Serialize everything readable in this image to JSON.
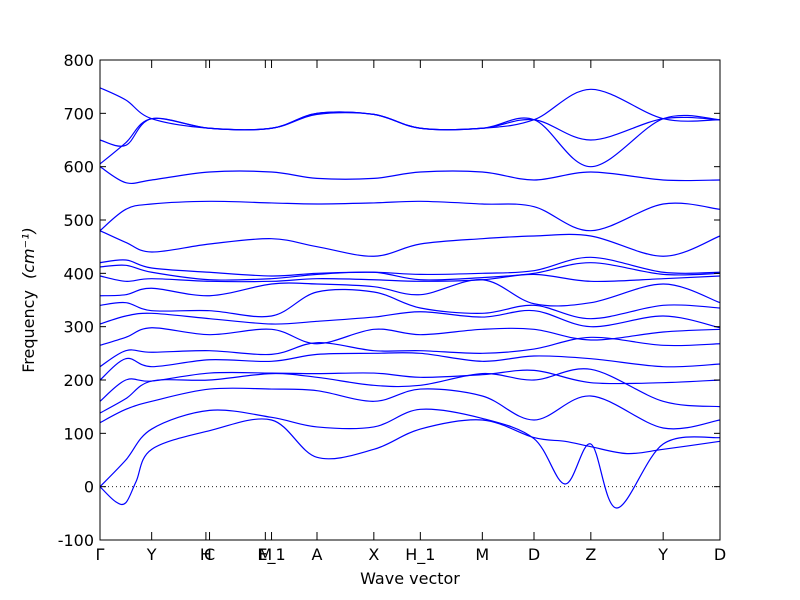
{
  "chart_data": {
    "type": "line",
    "title": "",
    "xlabel": "Wave vector",
    "ylabel": "Frequency",
    "ylabel_unit": "(cm⁻¹)",
    "ylim": [
      -100,
      800
    ],
    "yticks": [
      -100,
      0,
      100,
      200,
      300,
      400,
      500,
      600,
      700,
      800
    ],
    "xlim": [
      0,
      12
    ],
    "high_symmetry_points": [
      {
        "label": "Γ",
        "x": 0.0
      },
      {
        "label": "Y",
        "x": 1.0
      },
      {
        "label": "H",
        "x": 2.05
      },
      {
        "label": "C",
        "x": 2.12
      },
      {
        "label": "M",
        "x": 3.2
      },
      {
        "label": "E_1",
        "x": 3.32
      },
      {
        "label": "A",
        "x": 4.2
      },
      {
        "label": "X",
        "x": 5.3
      },
      {
        "label": "H_1",
        "x": 6.2
      },
      {
        "label": "M",
        "x": 7.4
      },
      {
        "label": "D",
        "x": 8.4
      },
      {
        "label": "Z",
        "x": 9.5
      },
      {
        "label": "Y",
        "x": 10.9
      },
      {
        "label": "D",
        "x": 12.0
      }
    ],
    "zero_line": true,
    "grid": false,
    "line_color": "#0000ff",
    "series": [
      {
        "x": [
          0,
          0.3,
          0.5,
          0.7,
          1.0,
          2.12,
          3.32,
          4.2,
          5.3,
          6.2,
          7.4,
          8.4,
          9.0,
          9.5,
          10.2,
          10.9,
          12.0
        ],
        "values": [
          0,
          -28,
          -30,
          10,
          70,
          105,
          125,
          55,
          70,
          108,
          125,
          92,
          85,
          75,
          62,
          70,
          85
        ]
      },
      {
        "x": [
          0,
          0.5,
          1.0,
          2.12,
          3.32,
          4.2,
          5.3,
          6.2,
          7.4,
          8.4,
          9.0,
          9.5,
          10.0,
          10.9,
          12.0
        ],
        "values": [
          0,
          50,
          108,
          143,
          130,
          112,
          112,
          145,
          128,
          90,
          5,
          80,
          -40,
          80,
          92
        ]
      },
      {
        "x": [
          0,
          0.5,
          1.0,
          2.12,
          3.32,
          4.2,
          5.3,
          6.2,
          7.4,
          8.4,
          9.5,
          10.9,
          12.0
        ],
        "values": [
          120,
          145,
          160,
          183,
          183,
          180,
          160,
          183,
          170,
          125,
          170,
          110,
          125
        ]
      },
      {
        "x": [
          0,
          0.5,
          1.0,
          2.12,
          3.32,
          4.2,
          5.3,
          6.2,
          7.4,
          8.4,
          9.5,
          10.9,
          12.0
        ],
        "values": [
          138,
          165,
          198,
          200,
          212,
          205,
          190,
          190,
          212,
          200,
          220,
          160,
          150
        ]
      },
      {
        "x": [
          0,
          0.5,
          1.0,
          2.12,
          3.32,
          4.2,
          5.3,
          6.2,
          7.4,
          8.4,
          9.5,
          10.9,
          12.0
        ],
        "values": [
          160,
          200,
          198,
          213,
          213,
          212,
          213,
          205,
          210,
          218,
          195,
          195,
          200
        ]
      },
      {
        "x": [
          0,
          0.5,
          1.0,
          2.12,
          3.32,
          4.2,
          5.3,
          6.2,
          7.4,
          8.4,
          9.5,
          10.9,
          12.0
        ],
        "values": [
          200,
          240,
          225,
          238,
          235,
          248,
          250,
          250,
          235,
          245,
          240,
          225,
          230
        ]
      },
      {
        "x": [
          0,
          0.5,
          1.0,
          2.12,
          3.32,
          4.2,
          5.3,
          6.2,
          7.4,
          8.4,
          9.5,
          10.9,
          12.0
        ],
        "values": [
          225,
          255,
          252,
          255,
          248,
          270,
          255,
          255,
          250,
          258,
          280,
          265,
          268
        ]
      },
      {
        "x": [
          0,
          0.5,
          1.0,
          2.12,
          3.32,
          4.2,
          5.3,
          6.2,
          7.4,
          8.4,
          9.5,
          10.9,
          12.0
        ],
        "values": [
          265,
          280,
          298,
          285,
          295,
          268,
          295,
          285,
          295,
          295,
          275,
          290,
          295
        ]
      },
      {
        "x": [
          0,
          0.5,
          1.0,
          2.12,
          3.32,
          4.2,
          5.3,
          6.2,
          7.4,
          8.4,
          9.5,
          10.9,
          12.0
        ],
        "values": [
          305,
          320,
          325,
          315,
          305,
          310,
          318,
          328,
          318,
          330,
          300,
          320,
          298
        ]
      },
      {
        "x": [
          0,
          0.5,
          1.0,
          2.12,
          3.32,
          4.2,
          5.3,
          6.2,
          7.4,
          8.4,
          9.5,
          10.9,
          12.0
        ],
        "values": [
          340,
          345,
          330,
          330,
          320,
          365,
          365,
          335,
          325,
          340,
          315,
          340,
          335
        ]
      },
      {
        "x": [
          0,
          0.5,
          1.0,
          2.12,
          3.32,
          4.2,
          5.3,
          6.2,
          7.4,
          8.4,
          9.5,
          10.9,
          12.0
        ],
        "values": [
          358,
          360,
          372,
          358,
          380,
          380,
          375,
          360,
          388,
          343,
          345,
          380,
          345
        ]
      },
      {
        "x": [
          0,
          0.5,
          1.0,
          2.12,
          3.32,
          4.2,
          5.3,
          6.2,
          7.4,
          8.4,
          9.5,
          10.9,
          12.0
        ],
        "values": [
          395,
          385,
          390,
          385,
          385,
          390,
          388,
          385,
          388,
          398,
          385,
          390,
          395
        ]
      },
      {
        "x": [
          0,
          0.5,
          1.0,
          2.12,
          3.32,
          4.2,
          5.3,
          6.2,
          7.4,
          8.4,
          9.5,
          10.9,
          12.0
        ],
        "values": [
          412,
          415,
          402,
          388,
          390,
          398,
          402,
          388,
          392,
          400,
          420,
          398,
          400
        ]
      },
      {
        "x": [
          0,
          0.5,
          1.0,
          2.12,
          3.32,
          4.2,
          5.3,
          6.2,
          7.4,
          8.4,
          9.5,
          10.9,
          12.0
        ],
        "values": [
          420,
          425,
          410,
          402,
          395,
          400,
          402,
          398,
          400,
          405,
          430,
          402,
          402
        ]
      },
      {
        "x": [
          0,
          0.5,
          1.0,
          2.12,
          3.32,
          4.2,
          5.3,
          6.2,
          7.4,
          8.4,
          9.5,
          10.9,
          12.0
        ],
        "values": [
          480,
          458,
          440,
          455,
          465,
          450,
          432,
          455,
          465,
          470,
          470,
          432,
          470
        ]
      },
      {
        "x": [
          0,
          0.5,
          1.0,
          2.12,
          3.32,
          4.2,
          5.3,
          6.2,
          7.4,
          8.4,
          9.5,
          10.9,
          12.0
        ],
        "values": [
          480,
          520,
          530,
          535,
          532,
          530,
          532,
          535,
          530,
          525,
          480,
          530,
          520
        ]
      },
      {
        "x": [
          0,
          0.5,
          1.0,
          2.12,
          3.32,
          4.2,
          5.3,
          6.2,
          7.4,
          8.4,
          9.5,
          10.9,
          12.0
        ],
        "values": [
          600,
          570,
          575,
          590,
          590,
          578,
          578,
          590,
          590,
          575,
          590,
          575,
          575
        ]
      },
      {
        "x": [
          0,
          0.5,
          1.0,
          2.12,
          3.32,
          4.2,
          5.3,
          6.2,
          7.4,
          8.4,
          9.5,
          10.9,
          12.0
        ],
        "values": [
          605,
          645,
          690,
          672,
          672,
          700,
          698,
          672,
          672,
          688,
          745,
          690,
          688
        ]
      },
      {
        "x": [
          0,
          0.5,
          1.0,
          2.12,
          3.32,
          4.2,
          5.3,
          6.2,
          7.4,
          8.4,
          9.5,
          10.9,
          12.0
        ],
        "values": [
          650,
          640,
          690,
          672,
          672,
          698,
          698,
          672,
          672,
          688,
          600,
          690,
          688
        ]
      },
      {
        "x": [
          0,
          0.5,
          1.0,
          2.12,
          3.32,
          4.2,
          5.3,
          6.2,
          7.4,
          8.4,
          9.5,
          10.9,
          12.0
        ],
        "values": [
          748,
          725,
          690,
          672,
          672,
          700,
          698,
          672,
          672,
          688,
          650,
          690,
          688
        ]
      }
    ]
  }
}
